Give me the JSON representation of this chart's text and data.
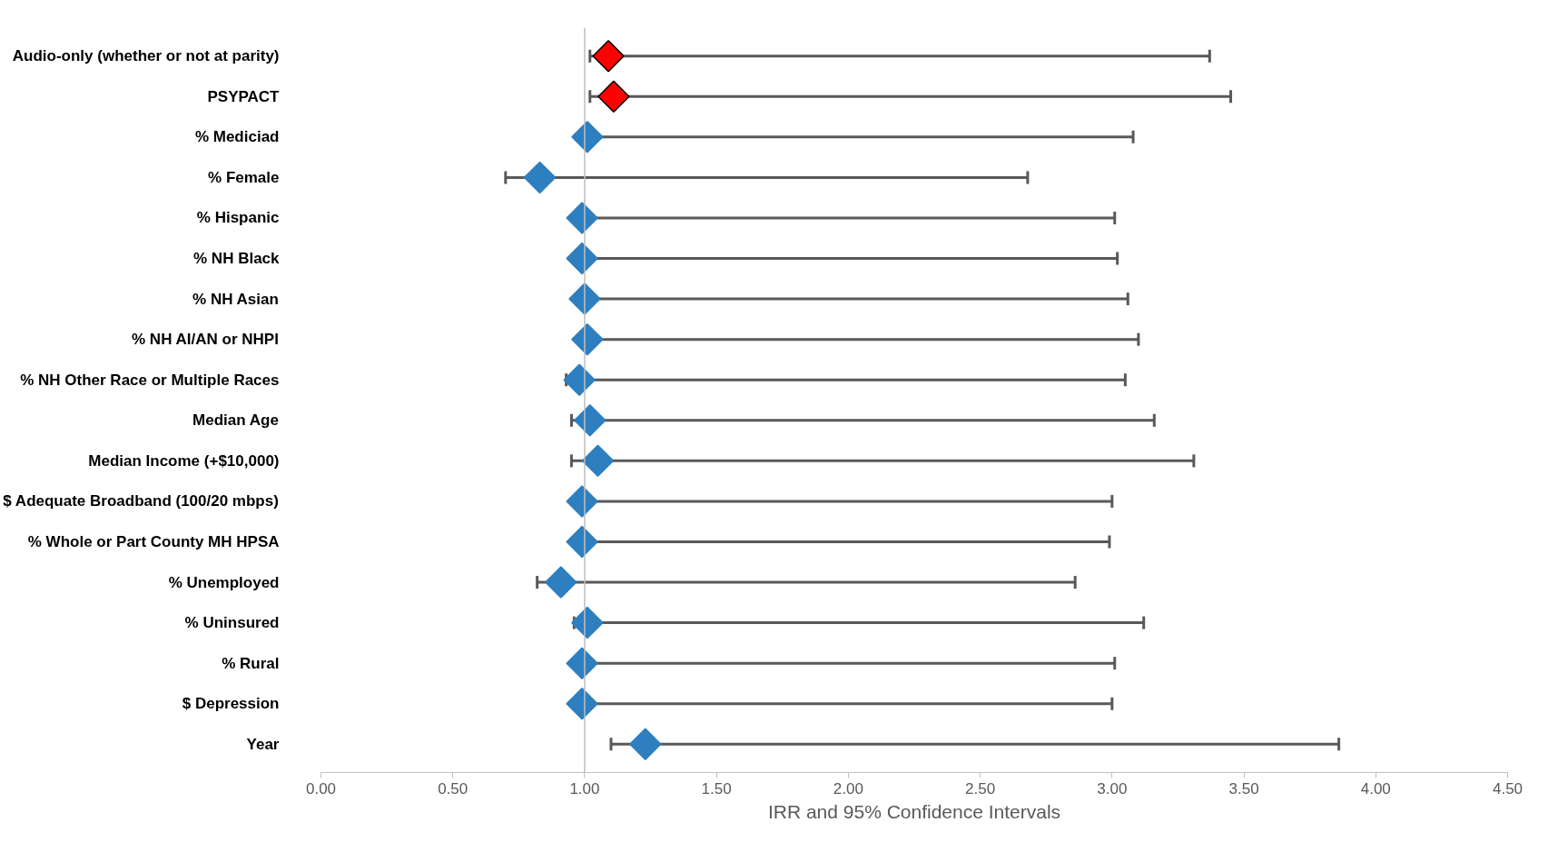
{
  "chart_data": {
    "type": "scatter",
    "xlabel": "IRR and 95% Confidence Intervals",
    "categories": [
      "Audio-only (whether or not at parity)",
      "PSYPACT",
      "% Mediciad",
      "% Female",
      "% Hispanic",
      "% NH Black",
      "% NH Asian",
      "% NH AI/AN or NHPI",
      "% NH Other Race or Multiple Races",
      "Median Age",
      "Median Income (+$10,000)",
      "$ Adequate Broadband (100/20 mbps)",
      "% Whole or Part County MH HPSA",
      "% Unemployed",
      "% Uninsured",
      "% Rural",
      "$ Depression",
      "Year"
    ],
    "values": [
      1.09,
      1.11,
      1.01,
      0.83,
      0.99,
      0.99,
      1.0,
      1.01,
      0.98,
      1.02,
      1.05,
      0.99,
      0.99,
      0.91,
      1.01,
      0.99,
      0.99,
      1.23
    ],
    "colors": [
      "#ff0000",
      "#ff0000",
      "#2e7fc0",
      "#2e7fc0",
      "#2e7fc0",
      "#2e7fc0",
      "#2e7fc0",
      "#2e7fc0",
      "#2e7fc0",
      "#2e7fc0",
      "#2e7fc0",
      "#2e7fc0",
      "#2e7fc0",
      "#2e7fc0",
      "#2e7fc0",
      "#2e7fc0",
      "#2e7fc0",
      "#2e7fc0"
    ],
    "errors": [
      [
        1.02,
        3.37
      ],
      [
        1.02,
        3.45
      ],
      [
        1.0,
        3.08
      ],
      [
        0.7,
        2.68
      ],
      [
        0.98,
        3.01
      ],
      [
        0.98,
        3.02
      ],
      [
        0.99,
        3.06
      ],
      [
        1.01,
        3.1
      ],
      [
        0.93,
        3.05
      ],
      [
        0.95,
        3.16
      ],
      [
        0.95,
        3.31
      ],
      [
        0.98,
        3.0
      ],
      [
        0.98,
        2.99
      ],
      [
        0.82,
        2.86
      ],
      [
        0.96,
        3.12
      ],
      [
        0.98,
        3.01
      ],
      [
        0.98,
        3.0
      ],
      [
        1.1,
        3.86
      ]
    ],
    "orientation": "horizontal",
    "xlim": [
      0,
      4.5
    ],
    "xticks": [
      {
        "value": 0,
        "label": "0.00"
      },
      {
        "value": 0.5,
        "label": "0.50"
      },
      {
        "value": 1,
        "label": "1.00"
      },
      {
        "value": 1.5,
        "label": "1.50"
      },
      {
        "value": 2,
        "label": "2.00"
      },
      {
        "value": 2.5,
        "label": "2.50"
      },
      {
        "value": 3,
        "label": "3.00"
      },
      {
        "value": 3.5,
        "label": "3.50"
      },
      {
        "value": 4,
        "label": "4.00"
      },
      {
        "value": 4.5,
        "label": "4.50"
      }
    ],
    "ref_lines": [
      {
        "axis": "x",
        "value": 1.0,
        "color": "#bfbfbf"
      }
    ],
    "marker": "diamond",
    "grid": false
  }
}
